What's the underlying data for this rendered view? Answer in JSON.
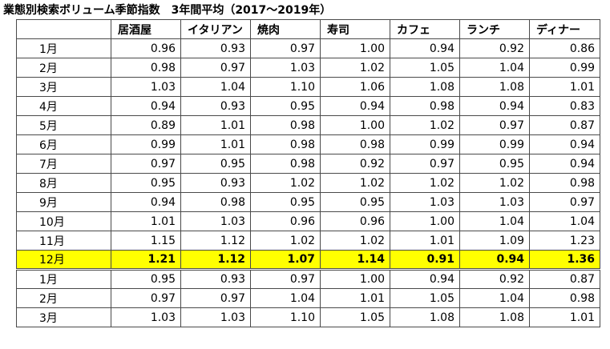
{
  "title": "業態別検索ボリューム季節指数　3年間平均（2017～2019年）",
  "columns": [
    "",
    "居酒屋",
    "イタリアン",
    "焼肉",
    "寿司",
    "カフェ",
    "ランチ",
    "ディナー"
  ],
  "rows": [
    {
      "month": "1月",
      "values": [
        "0.96",
        "0.93",
        "0.97",
        "1.00",
        "0.94",
        "0.92",
        "0.86"
      ]
    },
    {
      "month": "2月",
      "values": [
        "0.98",
        "0.97",
        "1.03",
        "1.02",
        "1.05",
        "1.04",
        "0.99"
      ]
    },
    {
      "month": "3月",
      "values": [
        "1.03",
        "1.04",
        "1.10",
        "1.06",
        "1.08",
        "1.08",
        "1.01"
      ]
    },
    {
      "month": "4月",
      "values": [
        "0.94",
        "0.93",
        "0.95",
        "0.94",
        "0.98",
        "0.94",
        "0.83"
      ]
    },
    {
      "month": "5月",
      "values": [
        "0.89",
        "1.01",
        "0.98",
        "1.00",
        "1.02",
        "0.97",
        "0.87"
      ]
    },
    {
      "month": "6月",
      "values": [
        "0.99",
        "1.01",
        "0.98",
        "0.98",
        "0.99",
        "0.99",
        "0.94"
      ]
    },
    {
      "month": "7月",
      "values": [
        "0.97",
        "0.95",
        "0.98",
        "0.92",
        "0.97",
        "0.95",
        "0.94"
      ]
    },
    {
      "month": "8月",
      "values": [
        "0.95",
        "0.93",
        "1.02",
        "1.02",
        "1.02",
        "1.02",
        "0.98"
      ]
    },
    {
      "month": "9月",
      "values": [
        "0.94",
        "0.98",
        "0.95",
        "0.95",
        "1.03",
        "1.03",
        "0.97"
      ]
    },
    {
      "month": "10月",
      "values": [
        "1.01",
        "1.03",
        "0.96",
        "0.96",
        "1.00",
        "1.04",
        "1.04"
      ]
    },
    {
      "month": "11月",
      "values": [
        "1.15",
        "1.12",
        "1.02",
        "1.02",
        "1.01",
        "1.09",
        "1.23"
      ]
    },
    {
      "month": "12月",
      "values": [
        "1.21",
        "1.12",
        "1.07",
        "1.14",
        "0.91",
        "0.94",
        "1.36"
      ],
      "highlight": true
    },
    {
      "month": "1月",
      "values": [
        "0.95",
        "0.93",
        "0.97",
        "1.00",
        "0.94",
        "0.92",
        "0.87"
      ],
      "gap_before": true
    },
    {
      "month": "2月",
      "values": [
        "0.97",
        "0.97",
        "1.04",
        "1.01",
        "1.05",
        "1.04",
        "0.98"
      ]
    },
    {
      "month": "3月",
      "values": [
        "1.03",
        "1.03",
        "1.10",
        "1.05",
        "1.08",
        "1.08",
        "1.01"
      ]
    }
  ],
  "highlight_color": "#ffff00"
}
